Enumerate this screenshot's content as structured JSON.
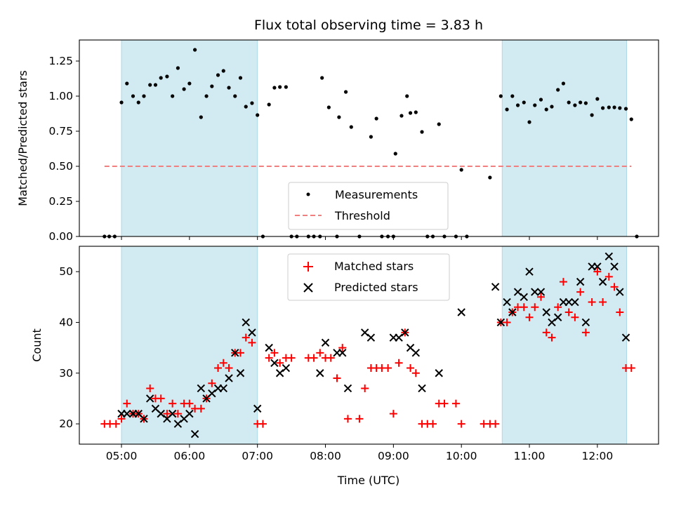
{
  "chart_data": {
    "type": "scatter",
    "title": "Flux total observing time = 3.83 h",
    "x_unit": "hours (UTC)",
    "xlim": [
      4.38,
      12.9
    ],
    "xticks": [
      5,
      6,
      7,
      8,
      9,
      10,
      11,
      12
    ],
    "xtick_labels": [
      "05:00",
      "06:00",
      "07:00",
      "08:00",
      "09:00",
      "10:00",
      "11:00",
      "12:00"
    ],
    "xlabel": "Time (UTC)",
    "shaded_intervals": [
      [
        5.0,
        7.0
      ],
      [
        10.6,
        12.43
      ]
    ],
    "shade_color": "#add8e6",
    "top_panel": {
      "ylabel": "Matched/Predicted stars",
      "ylim": [
        0,
        1.4
      ],
      "yticks": [
        0.0,
        0.25,
        0.5,
        0.75,
        1.0,
        1.25
      ],
      "ytick_labels": [
        "0.00",
        "0.25",
        "0.50",
        "0.75",
        "1.00",
        "1.25"
      ],
      "threshold": {
        "value": 0.5,
        "x_range": [
          4.75,
          12.5
        ],
        "color": "#f08080"
      },
      "legend": {
        "position": "lower center",
        "entries": [
          "Measurements",
          "Threshold"
        ]
      },
      "measurements": [
        [
          4.75,
          0
        ],
        [
          4.82,
          0
        ],
        [
          4.9,
          0
        ],
        [
          5.0,
          0.955
        ],
        [
          5.08,
          1.09
        ],
        [
          5.17,
          1.0
        ],
        [
          5.25,
          0.955
        ],
        [
          5.33,
          1.0
        ],
        [
          5.42,
          1.08
        ],
        [
          5.5,
          1.08
        ],
        [
          5.58,
          1.13
        ],
        [
          5.67,
          1.14
        ],
        [
          5.75,
          1.0
        ],
        [
          5.83,
          1.2
        ],
        [
          5.92,
          1.05
        ],
        [
          6.0,
          1.09
        ],
        [
          6.08,
          1.33
        ],
        [
          6.17,
          0.85
        ],
        [
          6.25,
          1.0
        ],
        [
          6.33,
          1.07
        ],
        [
          6.42,
          1.15
        ],
        [
          6.5,
          1.18
        ],
        [
          6.58,
          1.06
        ],
        [
          6.67,
          1.0
        ],
        [
          6.75,
          1.13
        ],
        [
          6.83,
          0.925
        ],
        [
          6.92,
          0.95
        ],
        [
          7.0,
          0.865
        ],
        [
          7.08,
          0
        ],
        [
          7.17,
          0.94
        ],
        [
          7.25,
          1.06
        ],
        [
          7.33,
          1.065
        ],
        [
          7.42,
          1.065
        ],
        [
          7.5,
          0
        ],
        [
          7.58,
          0
        ],
        [
          7.75,
          0
        ],
        [
          7.83,
          0
        ],
        [
          7.92,
          0
        ],
        [
          7.95,
          1.13
        ],
        [
          8.05,
          0.92
        ],
        [
          8.17,
          0
        ],
        [
          8.2,
          0.85
        ],
        [
          8.3,
          1.03
        ],
        [
          8.38,
          0.78
        ],
        [
          8.5,
          0
        ],
        [
          8.67,
          0.71
        ],
        [
          8.75,
          0.84
        ],
        [
          8.83,
          0
        ],
        [
          8.92,
          0
        ],
        [
          9.0,
          0
        ],
        [
          9.03,
          0.59
        ],
        [
          9.12,
          0.86
        ],
        [
          9.2,
          1.0
        ],
        [
          9.25,
          0.88
        ],
        [
          9.33,
          0.885
        ],
        [
          9.42,
          0.745
        ],
        [
          9.5,
          0
        ],
        [
          9.58,
          0
        ],
        [
          9.67,
          0.8
        ],
        [
          9.75,
          0
        ],
        [
          9.92,
          0
        ],
        [
          10.0,
          0.475
        ],
        [
          10.08,
          0
        ],
        [
          10.42,
          0.42
        ],
        [
          10.58,
          1.0
        ],
        [
          10.67,
          0.905
        ],
        [
          10.75,
          1.0
        ],
        [
          10.83,
          0.935
        ],
        [
          10.92,
          0.955
        ],
        [
          11.0,
          0.815
        ],
        [
          11.08,
          0.935
        ],
        [
          11.17,
          0.975
        ],
        [
          11.25,
          0.905
        ],
        [
          11.33,
          0.925
        ],
        [
          11.42,
          1.045
        ],
        [
          11.5,
          1.09
        ],
        [
          11.58,
          0.955
        ],
        [
          11.67,
          0.935
        ],
        [
          11.75,
          0.955
        ],
        [
          11.83,
          0.95
        ],
        [
          11.92,
          0.865
        ],
        [
          12.0,
          0.98
        ],
        [
          12.08,
          0.915
        ],
        [
          12.17,
          0.92
        ],
        [
          12.25,
          0.92
        ],
        [
          12.33,
          0.915
        ],
        [
          12.42,
          0.91
        ],
        [
          12.5,
          0.835
        ],
        [
          12.58,
          0
        ]
      ]
    },
    "bottom_panel": {
      "ylabel": "Count",
      "ylim": [
        16,
        55
      ],
      "yticks": [
        20,
        30,
        40,
        50
      ],
      "ytick_labels": [
        "20",
        "30",
        "40",
        "50"
      ],
      "legend": {
        "position": "upper center",
        "entries": [
          "Matched stars",
          "Predicted stars"
        ]
      },
      "series": [
        {
          "name": "Matched stars",
          "marker": "plus",
          "color": "#ff0000",
          "points": [
            [
              4.75,
              20
            ],
            [
              4.83,
              20
            ],
            [
              4.92,
              20
            ],
            [
              5.0,
              21
            ],
            [
              5.08,
              24
            ],
            [
              5.17,
              22
            ],
            [
              5.25,
              22
            ],
            [
              5.33,
              21
            ],
            [
              5.42,
              27
            ],
            [
              5.5,
              25
            ],
            [
              5.58,
              25
            ],
            [
              5.67,
              22
            ],
            [
              5.75,
              24
            ],
            [
              5.83,
              22
            ],
            [
              5.92,
              24
            ],
            [
              6.0,
              24
            ],
            [
              6.08,
              23
            ],
            [
              6.17,
              23
            ],
            [
              6.25,
              25
            ],
            [
              6.33,
              28
            ],
            [
              6.42,
              31
            ],
            [
              6.5,
              32
            ],
            [
              6.58,
              31
            ],
            [
              6.67,
              34
            ],
            [
              6.75,
              34
            ],
            [
              6.83,
              37
            ],
            [
              6.92,
              36
            ],
            [
              7.0,
              20
            ],
            [
              7.08,
              20
            ],
            [
              7.17,
              33
            ],
            [
              7.25,
              34
            ],
            [
              7.33,
              32
            ],
            [
              7.42,
              33
            ],
            [
              7.5,
              33
            ],
            [
              7.75,
              33
            ],
            [
              7.83,
              33
            ],
            [
              7.92,
              34
            ],
            [
              8.0,
              33
            ],
            [
              8.08,
              33
            ],
            [
              8.17,
              29
            ],
            [
              8.25,
              35
            ],
            [
              8.33,
              21
            ],
            [
              8.5,
              21
            ],
            [
              8.58,
              27
            ],
            [
              8.67,
              31
            ],
            [
              8.75,
              31
            ],
            [
              8.83,
              31
            ],
            [
              8.92,
              31
            ],
            [
              9.0,
              22
            ],
            [
              9.08,
              32
            ],
            [
              9.17,
              38
            ],
            [
              9.25,
              31
            ],
            [
              9.33,
              30
            ],
            [
              9.42,
              20
            ],
            [
              9.5,
              20
            ],
            [
              9.58,
              20
            ],
            [
              9.67,
              24
            ],
            [
              9.75,
              24
            ],
            [
              9.92,
              24
            ],
            [
              10.0,
              20
            ],
            [
              10.33,
              20
            ],
            [
              10.42,
              20
            ],
            [
              10.5,
              20
            ],
            [
              10.58,
              40
            ],
            [
              10.67,
              40
            ],
            [
              10.75,
              42
            ],
            [
              10.83,
              43
            ],
            [
              10.92,
              43
            ],
            [
              11.0,
              41
            ],
            [
              11.08,
              43
            ],
            [
              11.17,
              45
            ],
            [
              11.25,
              38
            ],
            [
              11.33,
              37
            ],
            [
              11.42,
              43
            ],
            [
              11.5,
              48
            ],
            [
              11.58,
              42
            ],
            [
              11.67,
              41
            ],
            [
              11.75,
              46
            ],
            [
              11.83,
              38
            ],
            [
              11.92,
              44
            ],
            [
              12.0,
              50
            ],
            [
              12.08,
              44
            ],
            [
              12.17,
              49
            ],
            [
              12.25,
              47
            ],
            [
              12.33,
              42
            ],
            [
              12.42,
              31
            ],
            [
              12.5,
              31
            ]
          ]
        },
        {
          "name": "Predicted stars",
          "marker": "x",
          "color": "#000000",
          "points": [
            [
              5.0,
              22
            ],
            [
              5.08,
              22
            ],
            [
              5.17,
              22
            ],
            [
              5.25,
              22
            ],
            [
              5.33,
              21
            ],
            [
              5.42,
              25
            ],
            [
              5.5,
              23
            ],
            [
              5.58,
              22
            ],
            [
              5.67,
              21
            ],
            [
              5.75,
              22
            ],
            [
              5.83,
              20
            ],
            [
              5.92,
              21
            ],
            [
              6.0,
              22
            ],
            [
              6.08,
              18
            ],
            [
              6.17,
              27
            ],
            [
              6.25,
              25
            ],
            [
              6.33,
              26
            ],
            [
              6.42,
              27
            ],
            [
              6.5,
              27
            ],
            [
              6.58,
              29
            ],
            [
              6.67,
              34
            ],
            [
              6.75,
              30
            ],
            [
              6.83,
              40
            ],
            [
              6.92,
              38
            ],
            [
              7.0,
              23
            ],
            [
              7.17,
              35
            ],
            [
              7.25,
              32
            ],
            [
              7.33,
              30
            ],
            [
              7.42,
              31
            ],
            [
              7.92,
              30
            ],
            [
              8.0,
              36
            ],
            [
              8.17,
              34
            ],
            [
              8.25,
              34
            ],
            [
              8.33,
              27
            ],
            [
              8.58,
              38
            ],
            [
              8.67,
              37
            ],
            [
              9.0,
              37
            ],
            [
              9.08,
              37
            ],
            [
              9.17,
              38
            ],
            [
              9.25,
              35
            ],
            [
              9.33,
              34
            ],
            [
              9.42,
              27
            ],
            [
              9.67,
              30
            ],
            [
              10.0,
              42
            ],
            [
              10.5,
              47
            ],
            [
              10.58,
              40
            ],
            [
              10.67,
              44
            ],
            [
              10.75,
              42
            ],
            [
              10.83,
              46
            ],
            [
              10.92,
              45
            ],
            [
              11.0,
              50
            ],
            [
              11.08,
              46
            ],
            [
              11.17,
              46
            ],
            [
              11.25,
              42
            ],
            [
              11.33,
              40
            ],
            [
              11.42,
              41
            ],
            [
              11.5,
              44
            ],
            [
              11.58,
              44
            ],
            [
              11.67,
              44
            ],
            [
              11.75,
              48
            ],
            [
              11.83,
              40
            ],
            [
              11.92,
              51
            ],
            [
              12.0,
              51
            ],
            [
              12.08,
              48
            ],
            [
              12.17,
              53
            ],
            [
              12.25,
              51
            ],
            [
              12.33,
              46
            ],
            [
              12.42,
              37
            ]
          ]
        }
      ]
    }
  }
}
